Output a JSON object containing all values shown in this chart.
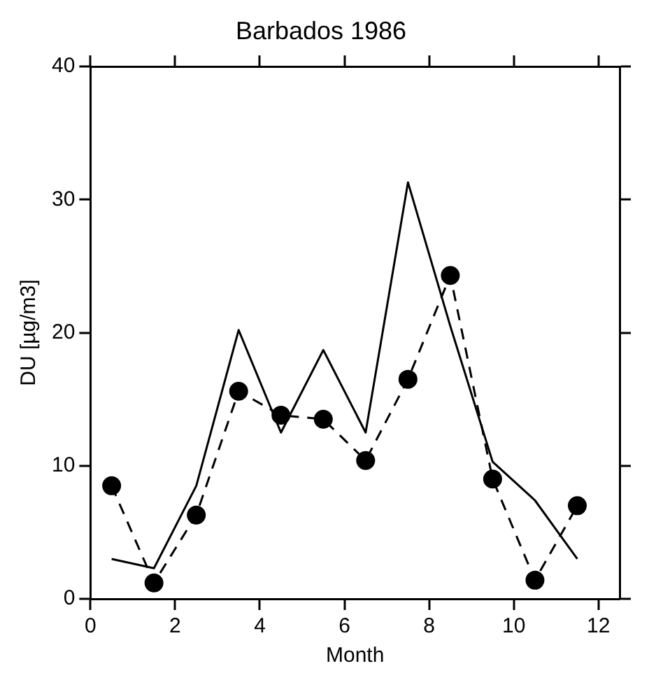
{
  "chart_data": {
    "type": "line",
    "title": "Barbados 1986",
    "xlabel": "Month",
    "ylabel": "DU [µg/m3]",
    "x": [
      0.5,
      1.5,
      2.5,
      3.5,
      4.5,
      5.5,
      6.5,
      7.5,
      8.5,
      9.5,
      10.5,
      11.5
    ],
    "series": [
      {
        "color": "#000000",
        "line_style": "solid",
        "marker": "none",
        "values": [
          3.0,
          2.3,
          8.5,
          20.2,
          12.5,
          18.7,
          12.5,
          31.3,
          20.5,
          10.3,
          7.4,
          3.0
        ]
      },
      {
        "color": "#000000",
        "line_style": "dashed",
        "marker": "circle",
        "values": [
          8.5,
          1.2,
          6.3,
          15.6,
          13.8,
          13.5,
          10.4,
          16.5,
          24.3,
          9.0,
          1.4,
          7.0
        ]
      }
    ],
    "xlim": [
      0,
      12.5
    ],
    "xticks": [
      0,
      2,
      4,
      6,
      8,
      10,
      12
    ],
    "ylim": [
      0,
      40
    ],
    "yticks": [
      0,
      10,
      20,
      30,
      40
    ],
    "grid": false,
    "legend": false
  }
}
